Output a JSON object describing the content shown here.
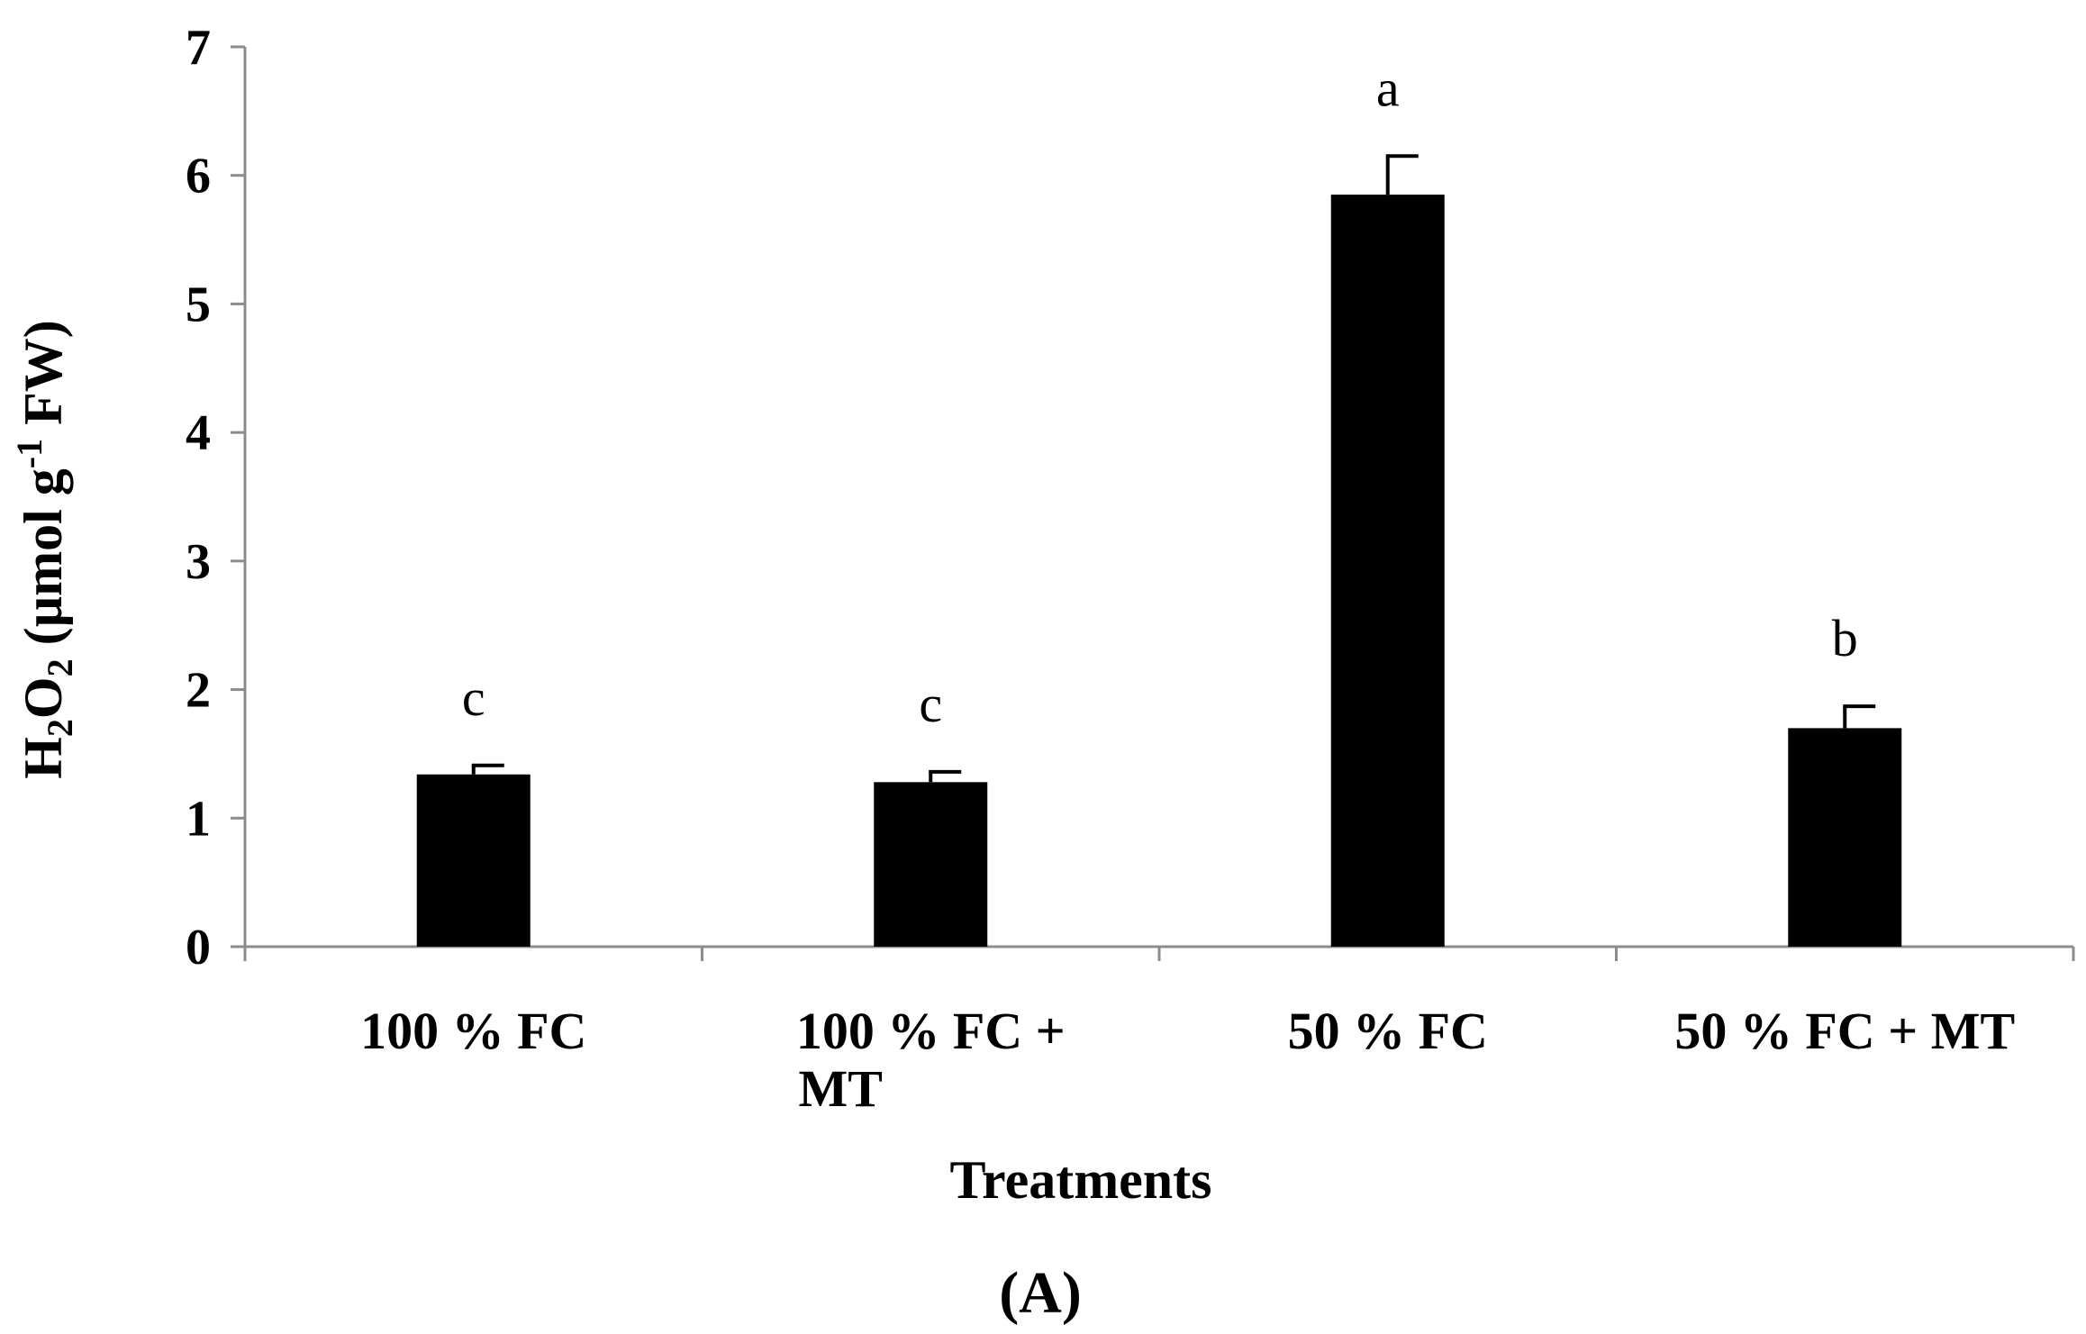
{
  "chart_data": {
    "type": "bar",
    "panel_label": "(A)",
    "xlabel": "Treatments",
    "ylabel": {
      "parts": [
        "H",
        "2",
        "O",
        "2",
        " (µmol g",
        "-1",
        " FW)"
      ],
      "full": "H2O2 (µmol g-1 FW)"
    },
    "ylim": [
      0,
      7
    ],
    "yticks": [
      "0",
      "1",
      "2",
      "3",
      "4",
      "5",
      "6",
      "7"
    ],
    "categories": [
      [
        "100 % FC"
      ],
      [
        "100 % FC +",
        "MT"
      ],
      [
        "50 % FC"
      ],
      [
        "50 % FC + MT"
      ]
    ],
    "values": [
      1.34,
      1.28,
      5.85,
      1.7
    ],
    "errors": [
      0.07,
      0.08,
      0.3,
      0.17
    ],
    "significance_letters": [
      "c",
      "c",
      "a",
      "b"
    ],
    "bar_color": "#000000",
    "axis_color": "#8c8c8c",
    "grid": false
  }
}
